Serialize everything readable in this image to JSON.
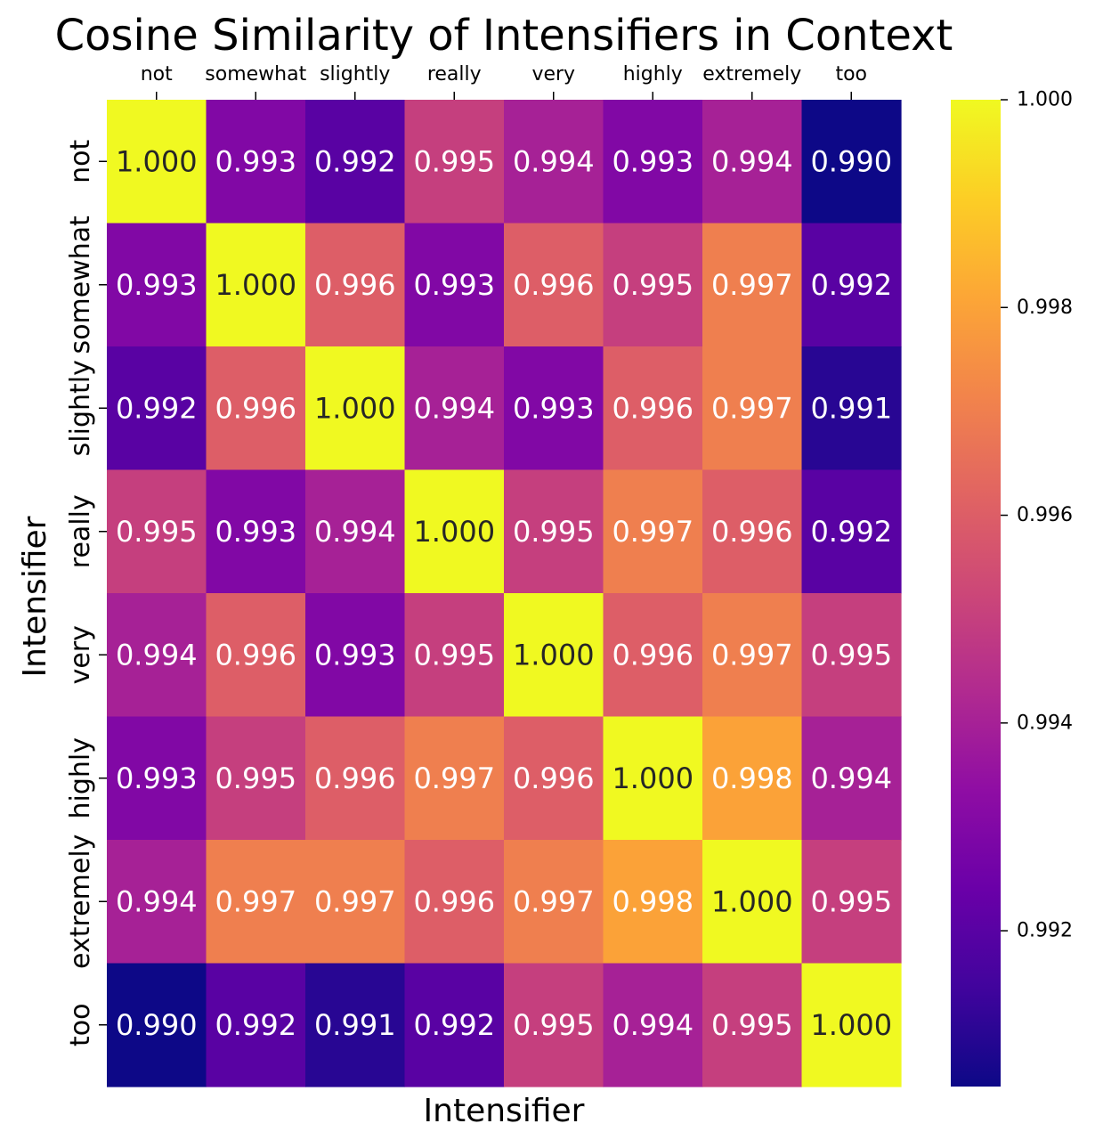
{
  "chart_data": {
    "type": "heatmap",
    "title": "Cosine Similarity of Intensifiers in Context",
    "xlabel": "Intensifier",
    "ylabel": "Intensifier",
    "x_tick_position": "top",
    "x": [
      "not",
      "somewhat",
      "slightly",
      "really",
      "very",
      "highly",
      "extremely",
      "too"
    ],
    "y": [
      "not",
      "somewhat",
      "slightly",
      "really",
      "very",
      "highly",
      "extremely",
      "too"
    ],
    "values": [
      [
        1.0,
        0.993,
        0.992,
        0.995,
        0.994,
        0.993,
        0.994,
        0.99
      ],
      [
        0.993,
        1.0,
        0.996,
        0.993,
        0.996,
        0.995,
        0.997,
        0.992
      ],
      [
        0.992,
        0.996,
        1.0,
        0.994,
        0.993,
        0.996,
        0.997,
        0.991
      ],
      [
        0.995,
        0.993,
        0.994,
        1.0,
        0.995,
        0.997,
        0.996,
        0.992
      ],
      [
        0.994,
        0.996,
        0.993,
        0.995,
        1.0,
        0.996,
        0.997,
        0.995
      ],
      [
        0.993,
        0.995,
        0.996,
        0.997,
        0.996,
        1.0,
        0.998,
        0.994
      ],
      [
        0.994,
        0.997,
        0.997,
        0.996,
        0.997,
        0.998,
        1.0,
        0.995
      ],
      [
        0.99,
        0.992,
        0.991,
        0.992,
        0.995,
        0.994,
        0.995,
        1.0
      ]
    ],
    "colormap": "plasma",
    "colorbar": {
      "range": [
        0.9905,
        1.0
      ],
      "ticks": [
        0.992,
        0.994,
        0.996,
        0.998,
        1.0
      ],
      "tick_labels": [
        "0.992",
        "0.994",
        "0.996",
        "0.998",
        "1.000"
      ]
    },
    "legend": "none",
    "grid": false
  }
}
